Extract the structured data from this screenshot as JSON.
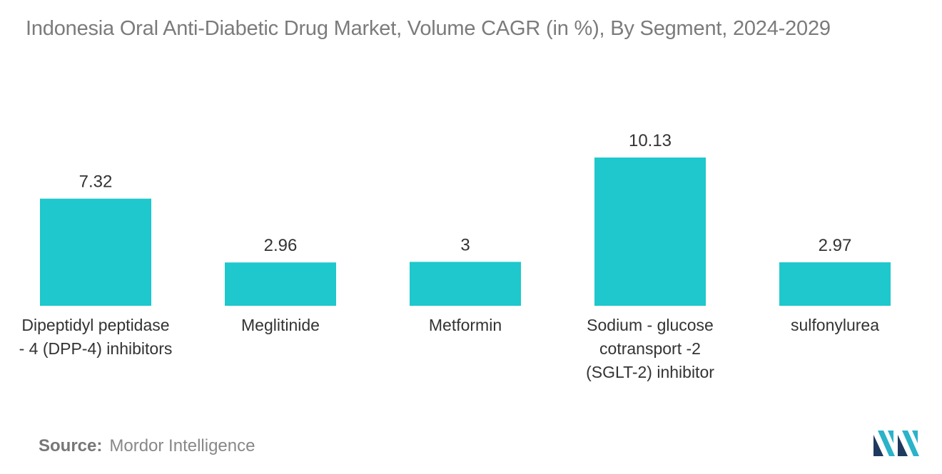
{
  "chart_data": {
    "type": "bar",
    "title": "Indonesia Oral Anti-Diabetic Drug Market, Volume CAGR (in %), By Segment, 2024-2029",
    "categories": [
      [
        "Dipeptidyl peptidase",
        "- 4 (DPP-4) inhibitors"
      ],
      [
        "Meglitinide"
      ],
      [
        "Metformin"
      ],
      [
        "Sodium - glucose",
        "cotransport -2",
        "(SGLT-2) inhibitor"
      ],
      [
        "sulfonylurea"
      ]
    ],
    "values": [
      7.32,
      2.96,
      3,
      10.13,
      2.97
    ],
    "value_labels": [
      "7.32",
      "2.96",
      "3",
      "10.13",
      "2.97"
    ],
    "ylim": [
      0,
      10.13
    ],
    "xlabel": "",
    "ylabel": "",
    "grid": false,
    "legend": "none",
    "bar_color": "#1ec8cc"
  },
  "source": {
    "label": "Source:",
    "text": "Mordor Intelligence"
  },
  "logo": {
    "icon": "mordor-intelligence-logo-icon",
    "colors": [
      "#1e3a5f",
      "#2ab3c9"
    ]
  }
}
